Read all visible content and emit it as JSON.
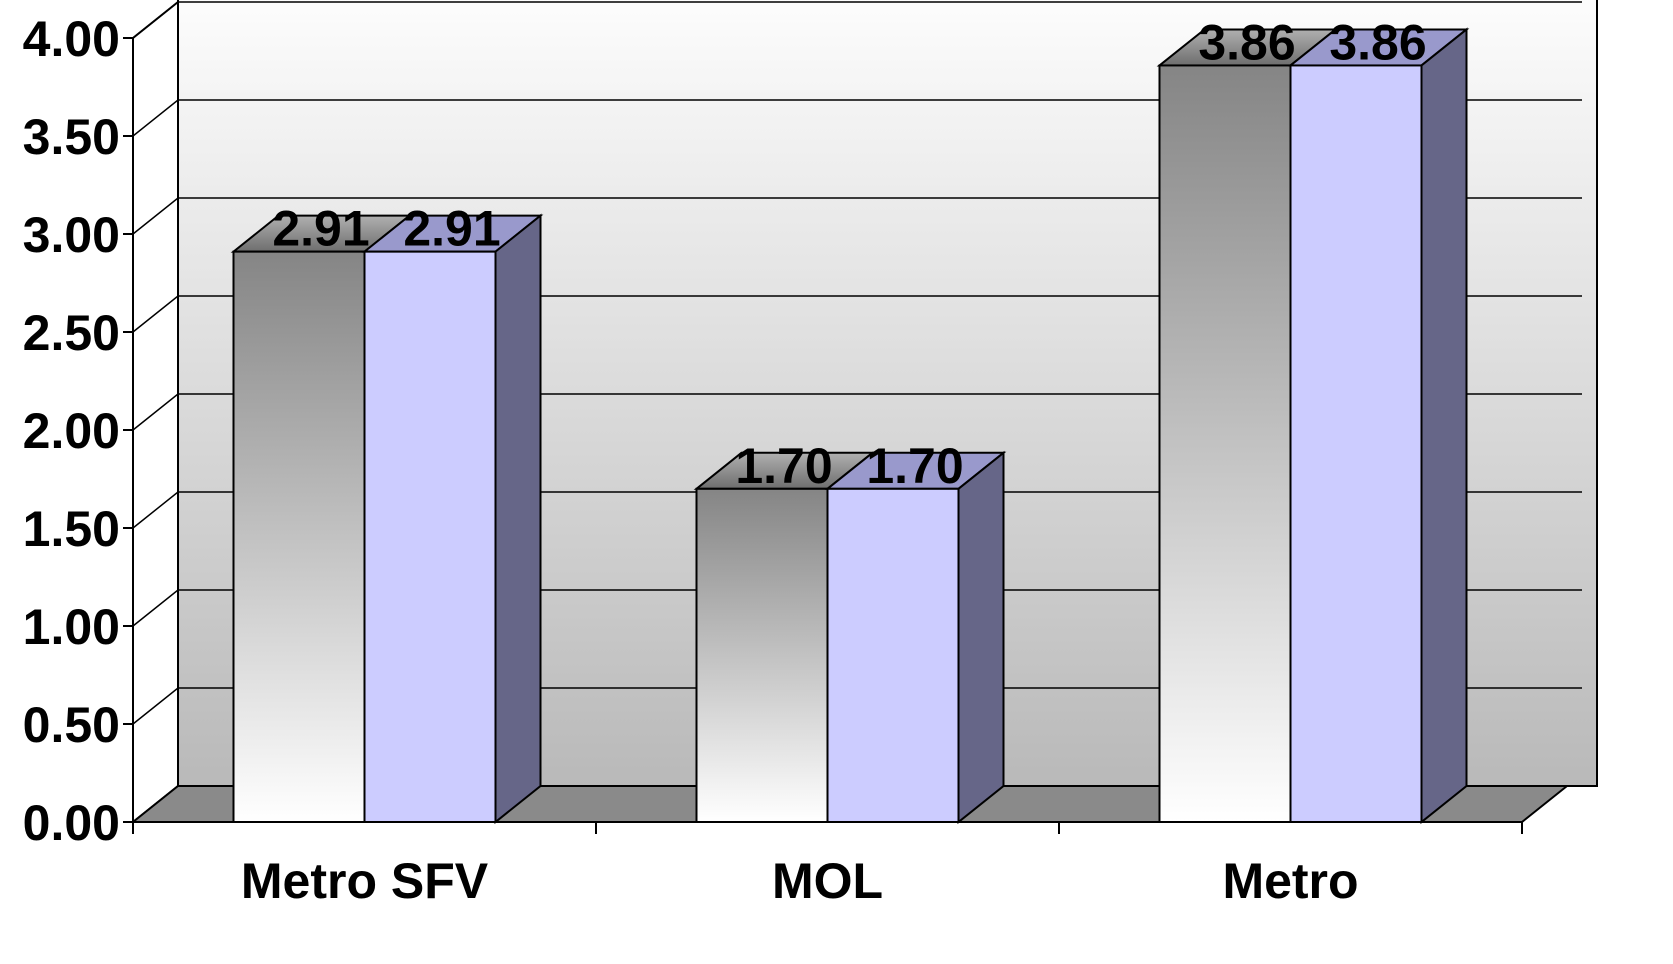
{
  "chart_data": {
    "type": "bar",
    "style": "3d-clustered",
    "title": "",
    "xlabel": "",
    "ylabel": "",
    "categories": [
      "Metro SFV",
      "MOL",
      "Metro"
    ],
    "series": [
      {
        "values": [
          2.91,
          1.7,
          3.86
        ],
        "color": "#8c8c8c"
      },
      {
        "values": [
          2.91,
          1.7,
          3.86
        ],
        "color": "#ccccff"
      }
    ],
    "data_labels": [
      [
        "2.91",
        "1.70",
        "3.86"
      ],
      [
        "2.91",
        "1.70",
        "3.86"
      ]
    ],
    "ylim": [
      0,
      4
    ],
    "y_ticks": [
      "0.00",
      "0.50",
      "1.00",
      "1.50",
      "2.00",
      "2.50",
      "3.00",
      "3.50",
      "4.00"
    ],
    "grid": true,
    "legend": "none",
    "colors": {
      "series1_front_dark": "#858585",
      "series1_front_light": "#ffffff",
      "series2_front": "#ccccff",
      "series2_top": "#9999cc",
      "series2_side": "#666688",
      "floor": "#8a8a8a",
      "wall_top": "#ffffff",
      "wall_bottom": "#b9b9b9"
    }
  }
}
